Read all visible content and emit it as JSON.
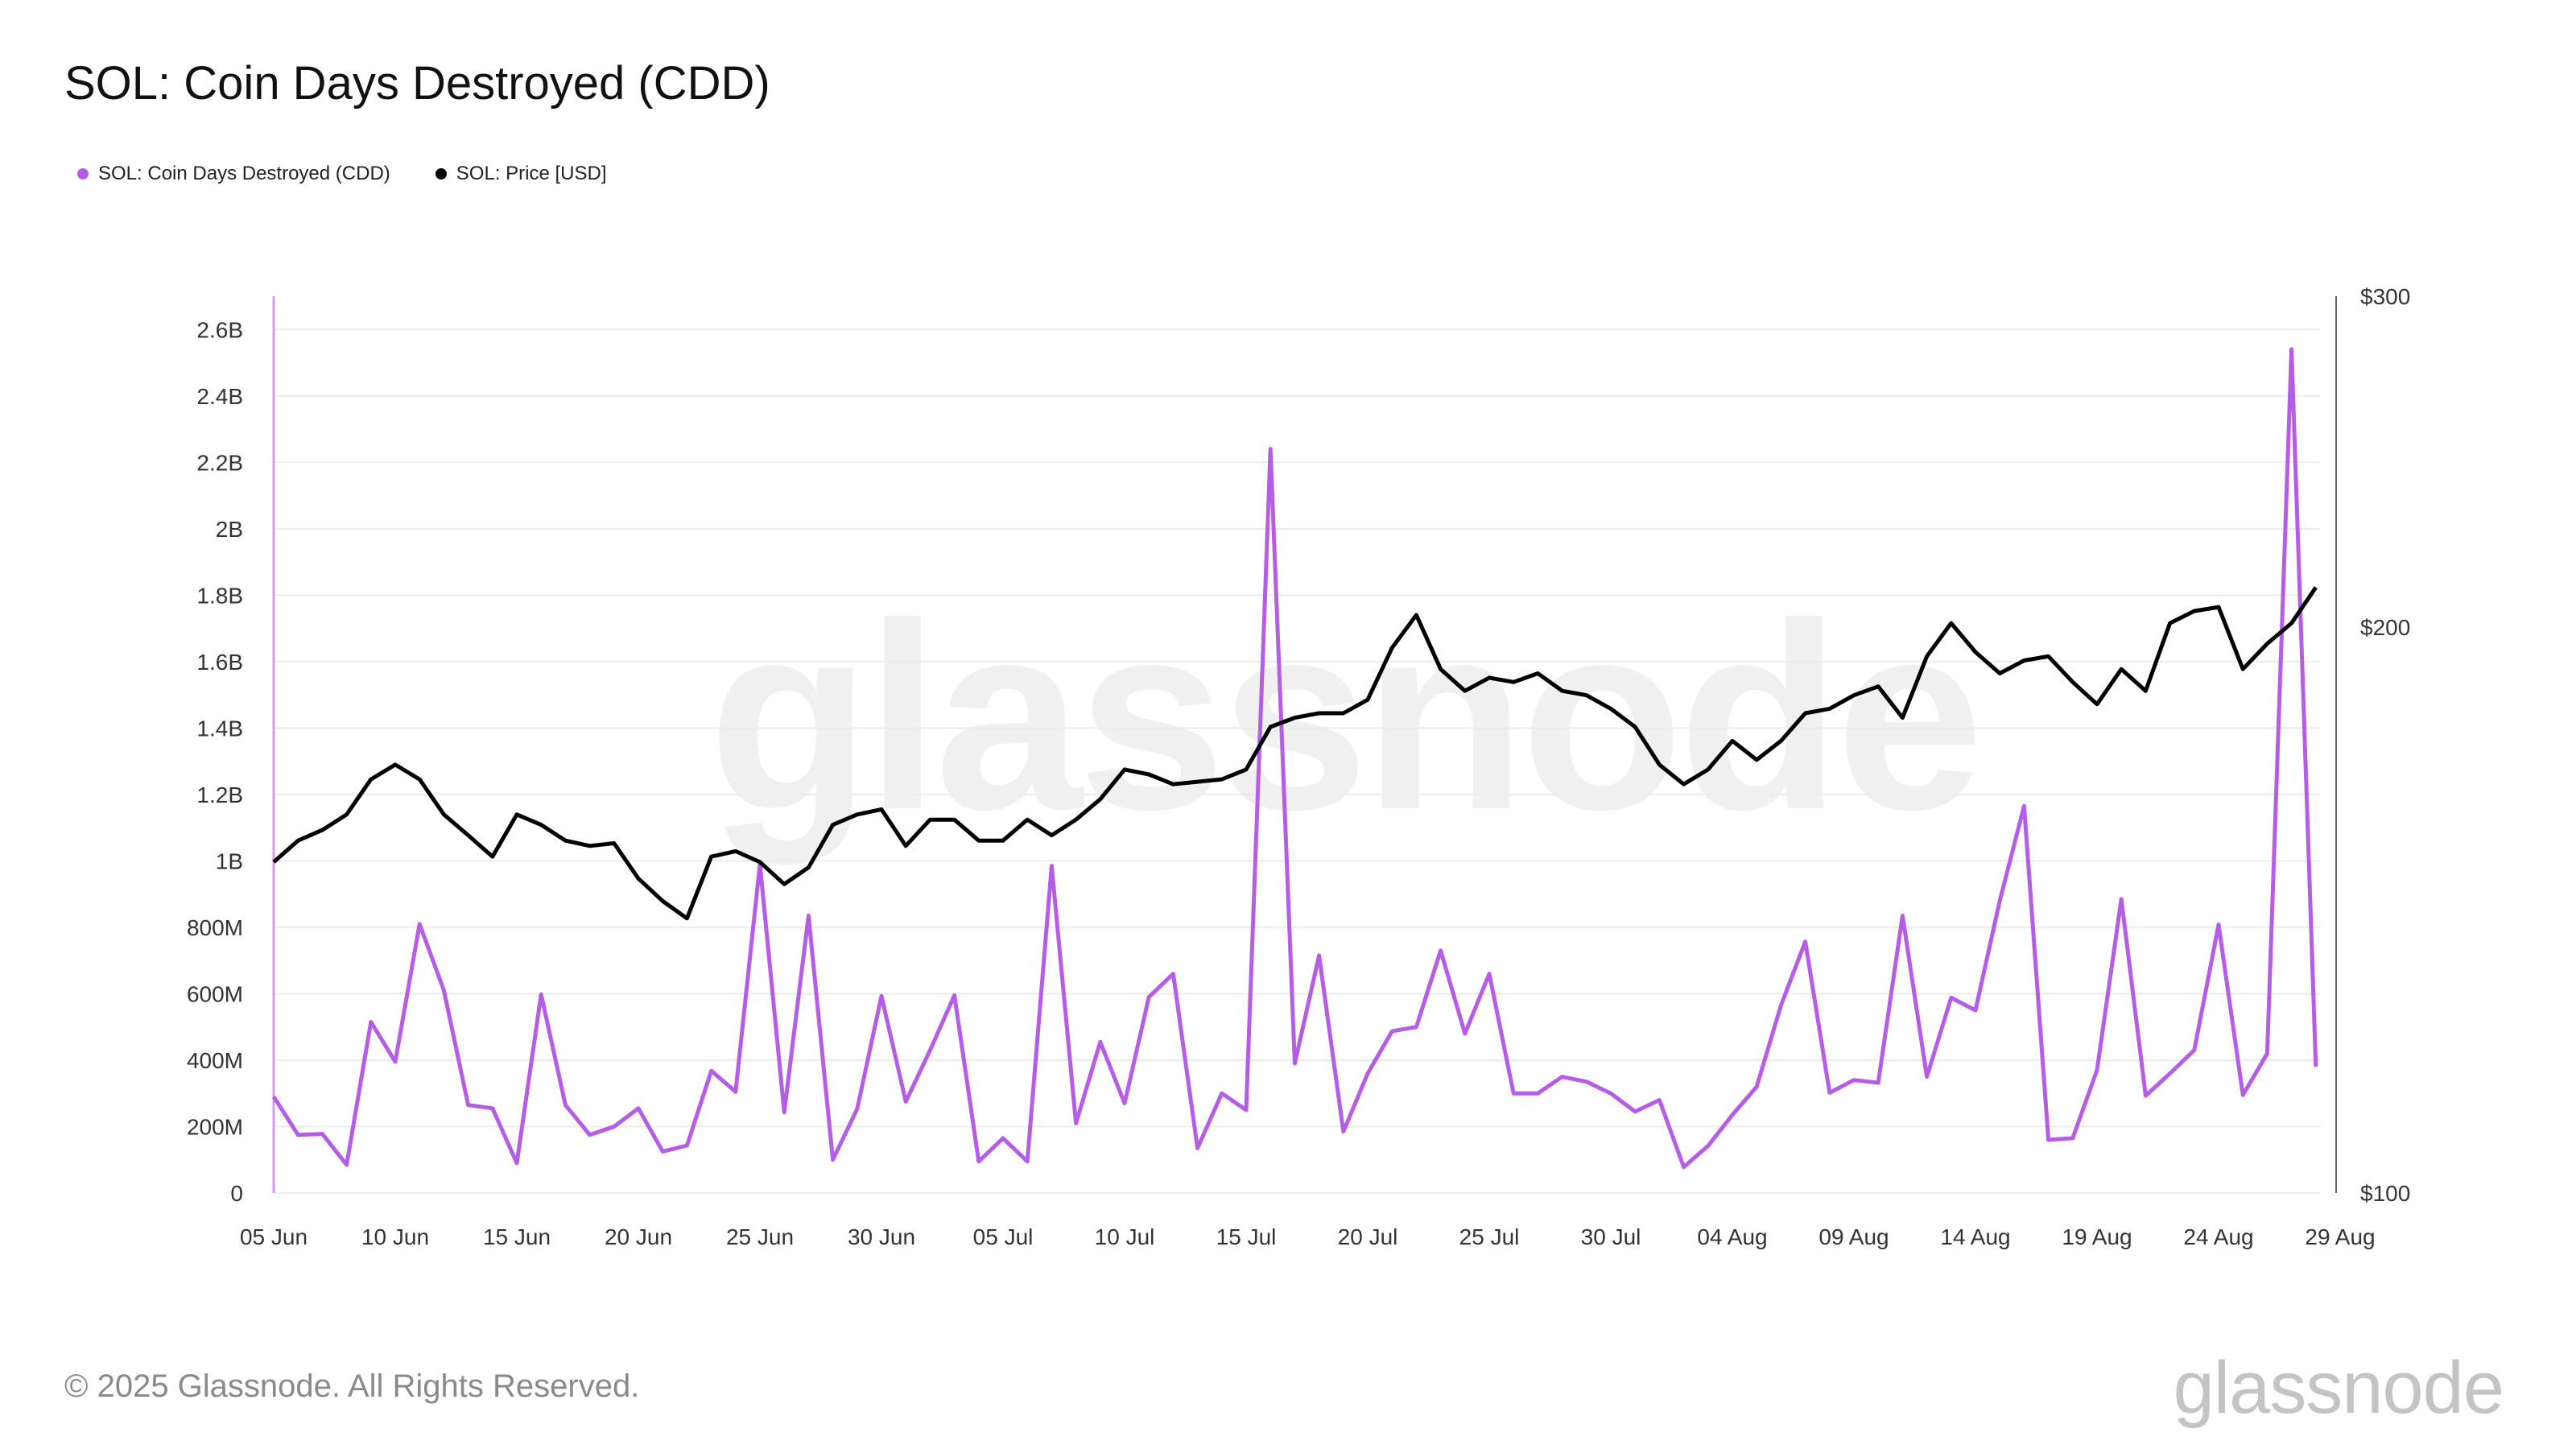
{
  "title": "SOL: Coin Days Destroyed (CDD)",
  "legend": {
    "cdd_label": "SOL: Coin Days Destroyed (CDD)",
    "price_label": "SOL: Price [USD]"
  },
  "footer": {
    "copyright": "© 2025 Glassnode. All Rights Reserved.",
    "logo": "glassnode"
  },
  "watermark": "glassnode",
  "colors": {
    "cdd": "#b55de6",
    "price": "#000000",
    "grid": "#ececec"
  },
  "chart_data": {
    "type": "line",
    "x_start": "2025-06-05",
    "x_tick_labels": [
      "05 Jun",
      "10 Jun",
      "15 Jun",
      "20 Jun",
      "25 Jun",
      "30 Jun",
      "05 Jul",
      "10 Jul",
      "15 Jul",
      "20 Jul",
      "25 Jul",
      "30 Jul",
      "04 Aug",
      "09 Aug",
      "14 Aug",
      "19 Aug",
      "24 Aug",
      "29 Aug"
    ],
    "y_left": {
      "ticks": [
        0,
        200,
        400,
        600,
        800,
        1000,
        1200,
        1400,
        1600,
        1800,
        2000,
        2200,
        2400,
        2600
      ],
      "tick_labels": [
        "0",
        "200M",
        "400M",
        "600M",
        "800M",
        "1B",
        "1.2B",
        "1.4B",
        "1.6B",
        "1.8B",
        "2B",
        "2.2B",
        "2.4B",
        "2.6B"
      ],
      "range": [
        0,
        2700
      ],
      "unit": "millions"
    },
    "y_right": {
      "ticks": [
        100,
        200,
        300
      ],
      "tick_labels": [
        "$100",
        "$200",
        "$300"
      ],
      "range": [
        100,
        300
      ],
      "scale": "log"
    },
    "grid": true,
    "legend_position": "top-left",
    "series": [
      {
        "name": "SOL: Coin Days Destroyed (CDD)",
        "axis": "left",
        "values": [
          290,
          175,
          178,
          85,
          515,
          395,
          810,
          610,
          265,
          255,
          90,
          598,
          265,
          175,
          200,
          255,
          125,
          143,
          368,
          305,
          990,
          243,
          835,
          100,
          253,
          593,
          275,
          430,
          595,
          95,
          165,
          95,
          985,
          210,
          455,
          270,
          590,
          660,
          135,
          300,
          250,
          2240,
          390,
          715,
          185,
          360,
          487,
          500,
          730,
          480,
          660,
          300,
          300,
          350,
          335,
          300,
          245,
          280,
          78,
          142,
          235,
          320,
          565,
          757,
          302,
          340,
          332,
          835,
          350,
          588,
          550,
          880,
          1165,
          160,
          165,
          370,
          885,
          293,
          360,
          430,
          808,
          295,
          420,
          2540,
          380
        ]
      },
      {
        "name": "SOL: Price [USD]",
        "axis": "right",
        "values": [
          150,
          154,
          156,
          159,
          166,
          169,
          166,
          159,
          155,
          151,
          159,
          157,
          154,
          153,
          153.5,
          147,
          143,
          140,
          151,
          152,
          150,
          146,
          149,
          157,
          159,
          160,
          153,
          158,
          158,
          154,
          154,
          158,
          155,
          158,
          162,
          168,
          167,
          165,
          165.5,
          166,
          168,
          177,
          179,
          180,
          180,
          183,
          195,
          203,
          190,
          185,
          188,
          187,
          189,
          185,
          184,
          181,
          177,
          169,
          165,
          168,
          174,
          170,
          174,
          180,
          181,
          184,
          186,
          179,
          193,
          201,
          194,
          189,
          192,
          193,
          187,
          182,
          190,
          185,
          201,
          204,
          205,
          190,
          196,
          201,
          210
        ]
      }
    ]
  }
}
